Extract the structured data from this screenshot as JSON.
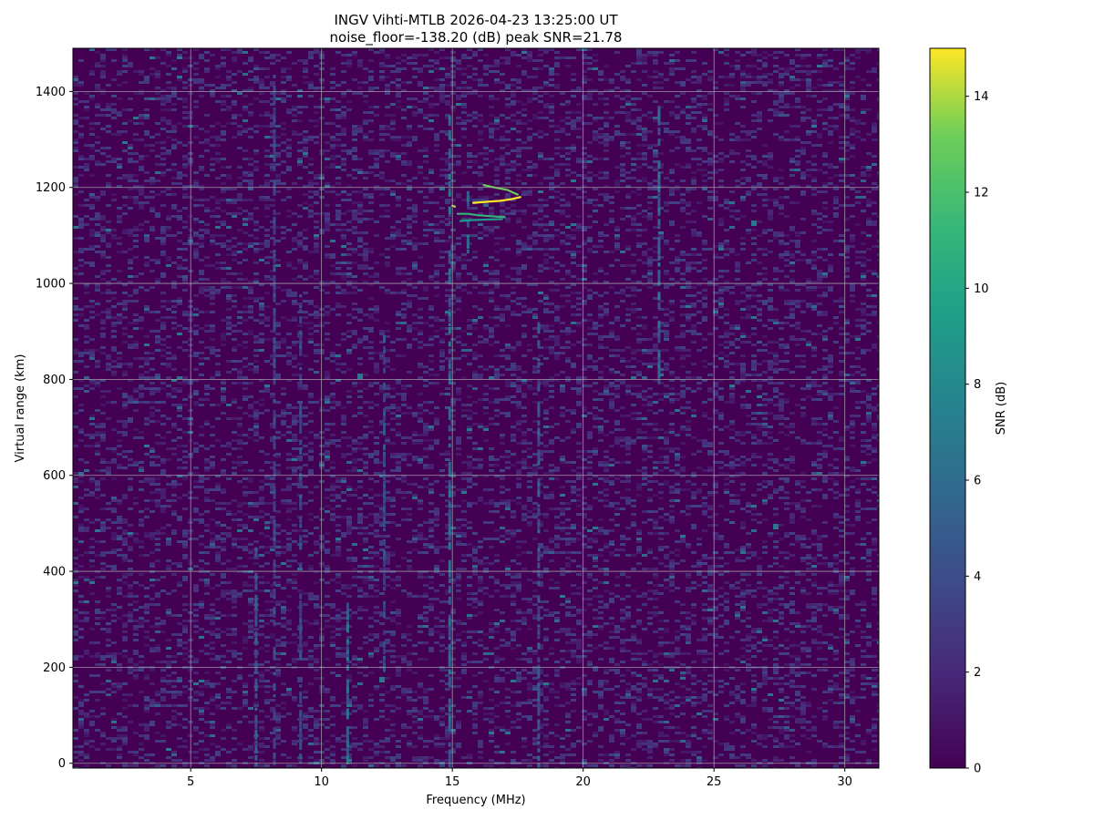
{
  "chart_data": {
    "type": "heatmap",
    "title": "INGV Vihti-MTLB 2026-04-23 13:25:00  UT",
    "subtitle": "noise_floor=-138.20 (dB) peak SNR=21.78",
    "xlabel": "Frequency (MHz)",
    "ylabel": "Virtual range (km)",
    "xlim": [
      0.5,
      31.3
    ],
    "ylim": [
      -10,
      1490
    ],
    "xticks": [
      5,
      10,
      15,
      20,
      25,
      30
    ],
    "yticks": [
      0,
      200,
      400,
      600,
      800,
      1000,
      1200,
      1400
    ],
    "grid": true,
    "colormap": "viridis",
    "colorbar": {
      "label": "SNR (dB)",
      "range": [
        0,
        15
      ],
      "ticks": [
        0,
        2,
        4,
        6,
        8,
        10,
        12,
        14
      ]
    },
    "background_snr_typical": [
      0,
      3
    ],
    "vertical_streaks": [
      {
        "freq": 7.5,
        "range": [
          0,
          450
        ],
        "snr": 5
      },
      {
        "freq": 8.2,
        "range": [
          0,
          1450
        ],
        "snr": 4
      },
      {
        "freq": 9.2,
        "range": [
          0,
          1000
        ],
        "snr": 4
      },
      {
        "freq": 11.0,
        "range": [
          0,
          350
        ],
        "snr": 6
      },
      {
        "freq": 12.4,
        "range": [
          200,
          900
        ],
        "snr": 4
      },
      {
        "freq": 14.9,
        "range": [
          0,
          1350
        ],
        "snr": 6
      },
      {
        "freq": 15.6,
        "range": [
          1050,
          1200
        ],
        "snr": 6
      },
      {
        "freq": 18.3,
        "range": [
          0,
          950
        ],
        "snr": 5
      },
      {
        "freq": 22.9,
        "range": [
          800,
          1370
        ],
        "snr": 6
      }
    ],
    "echo_traces": [
      {
        "points": [
          [
            16.2,
            1205
          ],
          [
            16.6,
            1200
          ],
          [
            17.1,
            1195
          ],
          [
            17.5,
            1185
          ]
        ],
        "snr": 13
      },
      {
        "points": [
          [
            15.8,
            1168
          ],
          [
            16.3,
            1170
          ],
          [
            16.8,
            1172
          ],
          [
            17.2,
            1175
          ],
          [
            17.6,
            1180
          ]
        ],
        "snr": 15
      },
      {
        "points": [
          [
            15.0,
            1162
          ],
          [
            15.1,
            1160
          ]
        ],
        "snr": 14
      },
      {
        "points": [
          [
            15.2,
            1145
          ],
          [
            15.6,
            1145
          ],
          [
            16.0,
            1142
          ],
          [
            16.5,
            1140
          ],
          [
            17.0,
            1138
          ]
        ],
        "snr": 11
      },
      {
        "points": [
          [
            15.3,
            1130
          ],
          [
            15.8,
            1132
          ],
          [
            16.3,
            1133
          ],
          [
            16.9,
            1134
          ]
        ],
        "snr": 9
      }
    ],
    "background": [
      {
        "range_km": [
          0,
          1490
        ],
        "freq_mhz": [
          0.5,
          31.3
        ],
        "snr": "0-3"
      }
    ]
  }
}
